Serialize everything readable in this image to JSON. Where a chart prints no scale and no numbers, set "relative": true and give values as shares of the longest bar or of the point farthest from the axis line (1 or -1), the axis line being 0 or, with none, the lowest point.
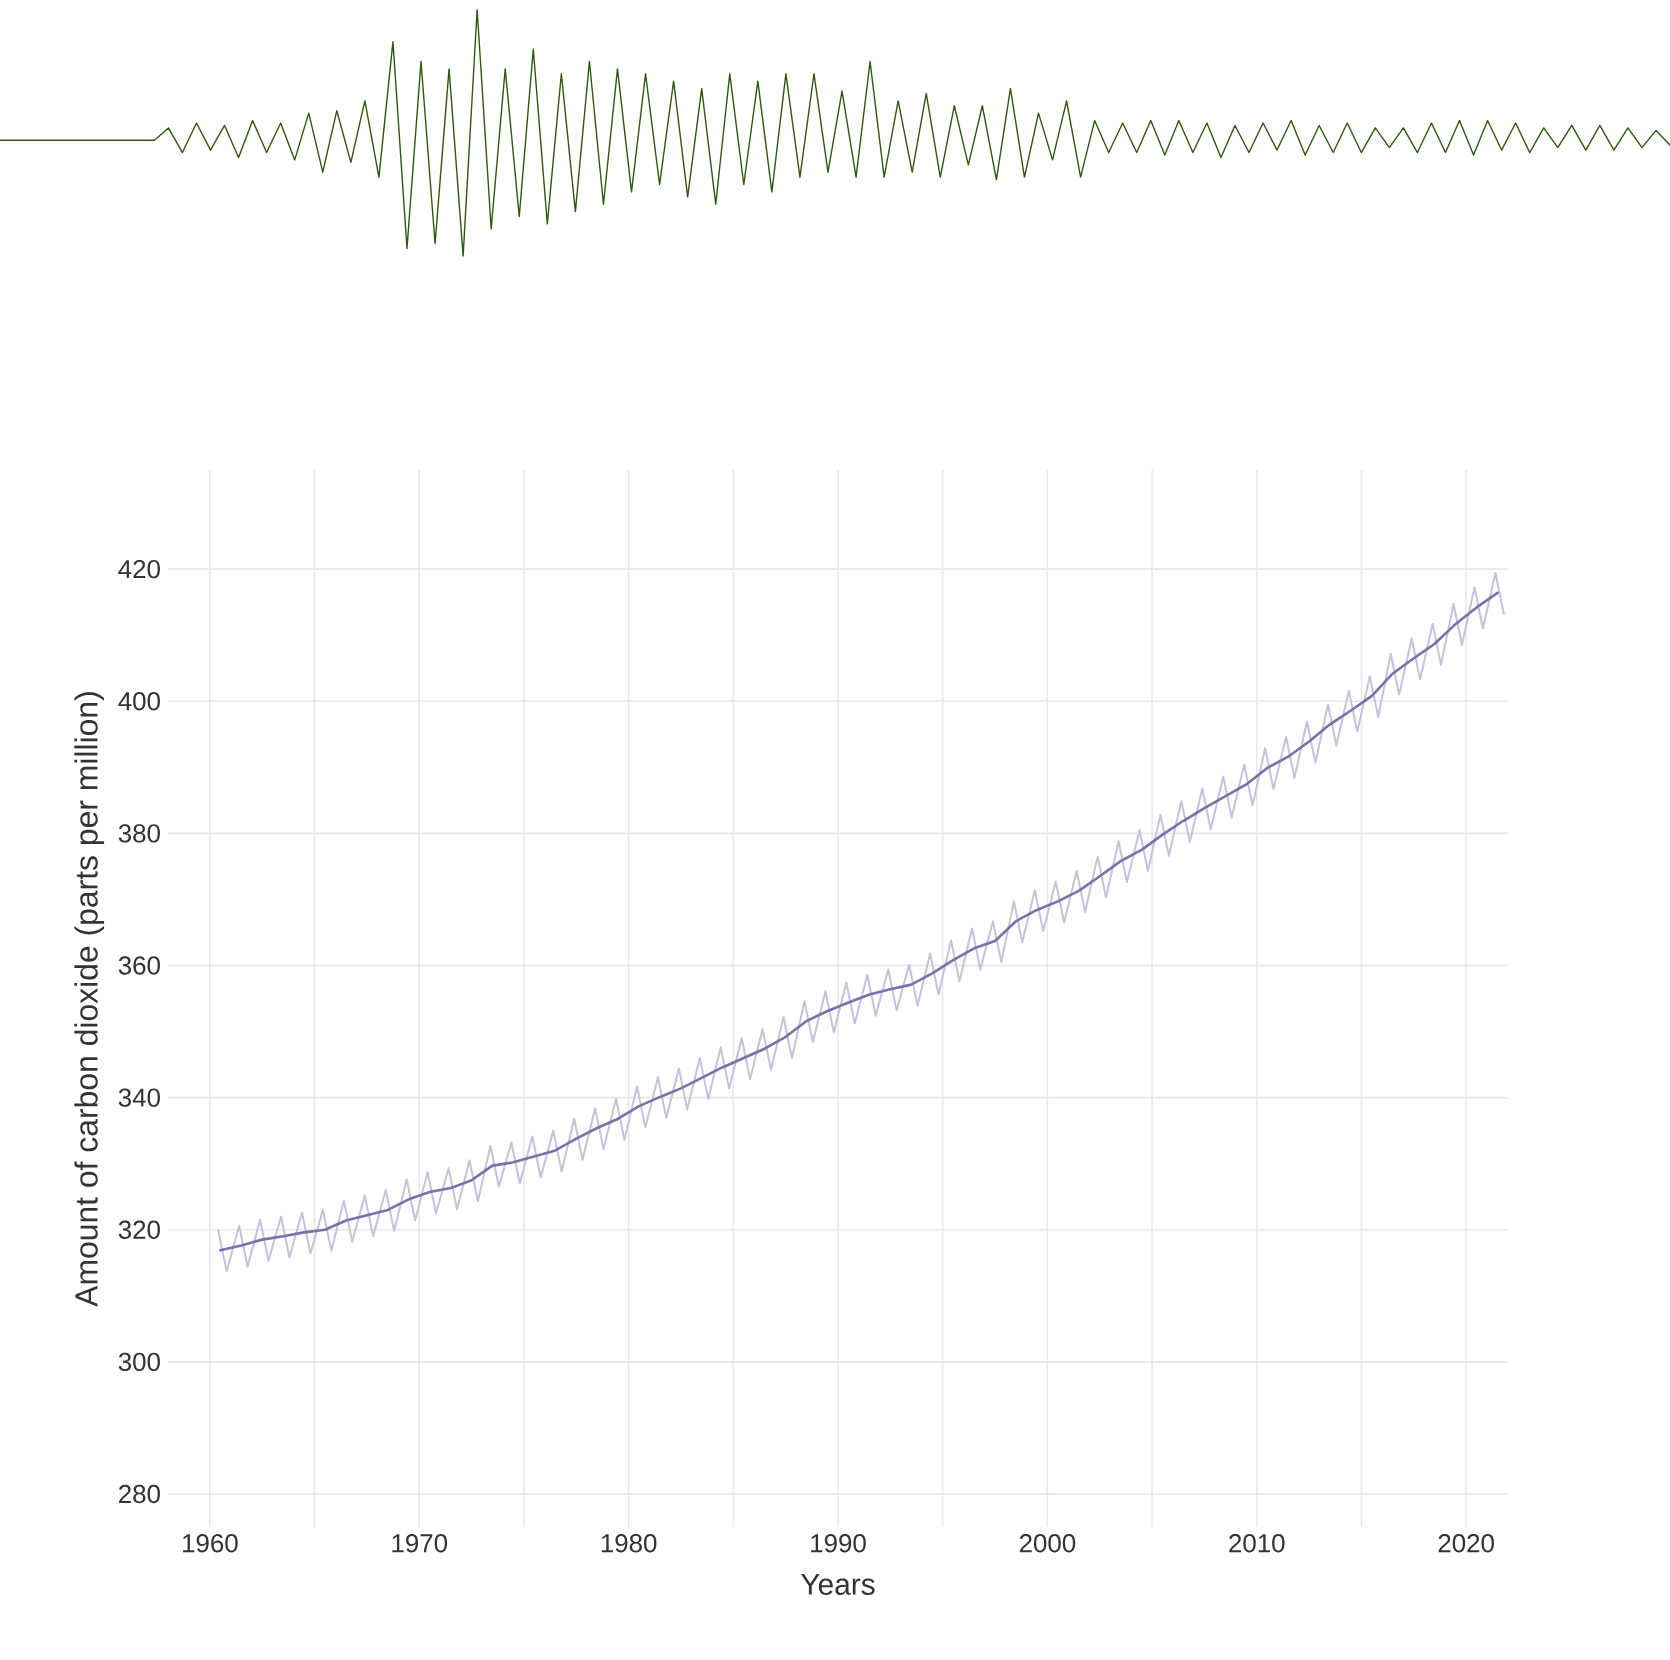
{
  "chart_data": [
    {
      "type": "line",
      "relative": true,
      "marker": "none",
      "categories": [
        null,
        null,
        null,
        null,
        null,
        null,
        null,
        null,
        null,
        null,
        null,
        null,
        null,
        null,
        null,
        null,
        null,
        null,
        null,
        null,
        null,
        null,
        null,
        null,
        null,
        null,
        null,
        null,
        null,
        null,
        null,
        null,
        null,
        null,
        null,
        null,
        null,
        null,
        null,
        null,
        null,
        null,
        null,
        null,
        null,
        null,
        null,
        null,
        null,
        null,
        null,
        null,
        null,
        null,
        null,
        null,
        null,
        null,
        null,
        null,
        null,
        null,
        null,
        null,
        null,
        null,
        null,
        null,
        null,
        null,
        null,
        null,
        null,
        null,
        null,
        null,
        null,
        null,
        null,
        null,
        null,
        null,
        null,
        null,
        null,
        null,
        null,
        null,
        null,
        null,
        null,
        null,
        null,
        null,
        null,
        null,
        null,
        null,
        null,
        null,
        null,
        null,
        null,
        null,
        null,
        null,
        null,
        null,
        null,
        null,
        null,
        null,
        null,
        null,
        null,
        null,
        null,
        null,
        null,
        null
      ],
      "series": [
        {
          "color": "#2d5a0e",
          "values": [
            0.47,
            0.47,
            0.47,
            0.47,
            0.47,
            0.47,
            0.47,
            0.47,
            0.47,
            0.47,
            0.47,
            0.47,
            0.52,
            0.42,
            0.54,
            0.43,
            0.53,
            0.4,
            0.55,
            0.42,
            0.54,
            0.39,
            0.58,
            0.34,
            0.59,
            0.38,
            0.63,
            0.32,
            0.87,
            0.03,
            0.79,
            0.05,
            0.76,
            0,
            1,
            0.11,
            0.76,
            0.16,
            0.84,
            0.13,
            0.74,
            0.18,
            0.79,
            0.21,
            0.76,
            0.26,
            0.74,
            0.29,
            0.71,
            0.24,
            0.68,
            0.21,
            0.74,
            0.29,
            0.71,
            0.26,
            0.74,
            0.32,
            0.74,
            0.34,
            0.67,
            0.32,
            0.79,
            0.32,
            0.63,
            0.34,
            0.66,
            0.32,
            0.61,
            0.37,
            0.61,
            0.31,
            0.68,
            0.32,
            0.58,
            0.39,
            0.63,
            0.32,
            0.55,
            0.42,
            0.54,
            0.42,
            0.55,
            0.41,
            0.55,
            0.42,
            0.54,
            0.4,
            0.53,
            0.42,
            0.54,
            0.43,
            0.55,
            0.41,
            0.53,
            0.42,
            0.54,
            0.42,
            0.52,
            0.44,
            0.52,
            0.42,
            0.54,
            0.42,
            0.55,
            0.41,
            0.55,
            0.43,
            0.54,
            0.42,
            0.52,
            0.44,
            0.53,
            0.43,
            0.53,
            0.43,
            0.52,
            0.44,
            0.51,
            0.45
          ]
        }
      ]
    },
    {
      "type": "line",
      "xlabel": "Years",
      "ylabel": "Amount of carbon dioxide (parts per million)",
      "grid": true,
      "marker": "none",
      "xlim": [
        1958,
        2022
      ],
      "ylim": [
        275,
        435
      ],
      "xticks": [
        1960,
        {
          "value": 1965,
          "label": null
        },
        1970,
        {
          "value": 1975,
          "label": null
        },
        1980,
        {
          "value": 1985,
          "label": null
        },
        1990,
        {
          "value": 1995,
          "label": null
        },
        2000,
        {
          "value": 2005,
          "label": null
        },
        2010,
        {
          "value": 2015,
          "label": null
        },
        2020
      ],
      "yticks": [
        280,
        300,
        320,
        340,
        360,
        380,
        400,
        420
      ],
      "series": [
        {
          "color": "#c3c3dd",
          "x": [
            1960.4,
            1960.8,
            1961.4,
            1961.8,
            1962.4,
            1962.8,
            1963.4,
            1963.8,
            1964.4,
            1964.8,
            1965.4,
            1965.8,
            1966.4,
            1966.8,
            1967.4,
            1967.8,
            1968.4,
            1968.8,
            1969.4,
            1969.8,
            1970.4,
            1970.8,
            1971.4,
            1971.8,
            1972.4,
            1972.8,
            1973.4,
            1973.8,
            1974.4,
            1974.8,
            1975.4,
            1975.8,
            1976.4,
            1976.8,
            1977.4,
            1977.8,
            1978.4,
            1978.8,
            1979.4,
            1979.8,
            1980.4,
            1980.8,
            1981.4,
            1981.8,
            1982.4,
            1982.8,
            1983.4,
            1983.8,
            1984.4,
            1984.8,
            1985.4,
            1985.8,
            1986.4,
            1986.8,
            1987.4,
            1987.8,
            1988.4,
            1988.8,
            1989.4,
            1989.8,
            1990.4,
            1990.8,
            1991.4,
            1991.8,
            1992.4,
            1992.8,
            1993.4,
            1993.8,
            1994.4,
            1994.8,
            1995.4,
            1995.8,
            1996.4,
            1996.8,
            1997.4,
            1997.8,
            1998.4,
            1998.8,
            1999.4,
            1999.8,
            2000.4,
            2000.8,
            2001.4,
            2001.8,
            2002.4,
            2002.8,
            2003.4,
            2003.8,
            2004.4,
            2004.8,
            2005.4,
            2005.8,
            2006.4,
            2006.8,
            2007.4,
            2007.8,
            2008.4,
            2008.8,
            2009.4,
            2009.8,
            2010.4,
            2010.8,
            2011.4,
            2011.8,
            2012.4,
            2012.8,
            2013.4,
            2013.8,
            2014.4,
            2014.8,
            2015.4,
            2015.8,
            2016.4,
            2016.8,
            2017.4,
            2017.8,
            2018.4,
            2018.8,
            2019.4,
            2019.8,
            2020.4,
            2020.8,
            2021.4,
            2021.8
          ],
          "values": [
            319.9,
            313.7,
            320.6,
            314.4,
            321.5,
            315.3,
            322.0,
            315.8,
            322.6,
            316.4,
            323.0,
            316.8,
            324.4,
            318.2,
            325.2,
            319.0,
            326.0,
            319.8,
            327.6,
            321.4,
            328.7,
            322.5,
            329.3,
            323.1,
            330.5,
            324.3,
            332.7,
            326.5,
            333.2,
            327.0,
            334.1,
            327.9,
            335.0,
            328.8,
            336.8,
            330.6,
            338.4,
            332.2,
            339.8,
            333.6,
            341.7,
            335.5,
            343.1,
            336.9,
            344.4,
            338.2,
            346.0,
            339.8,
            347.6,
            341.4,
            349.0,
            342.8,
            350.4,
            344.2,
            352.2,
            346.0,
            354.6,
            348.4,
            356.1,
            349.9,
            357.4,
            351.2,
            358.6,
            352.4,
            359.4,
            353.2,
            360.1,
            353.9,
            361.8,
            355.6,
            363.8,
            357.6,
            365.6,
            359.4,
            366.7,
            360.5,
            369.7,
            363.5,
            371.4,
            365.2,
            372.7,
            366.5,
            374.3,
            368.1,
            376.5,
            370.3,
            378.8,
            372.6,
            380.5,
            374.3,
            382.8,
            376.6,
            384.9,
            378.7,
            386.8,
            380.6,
            388.6,
            382.4,
            390.4,
            384.2,
            392.9,
            386.7,
            394.6,
            388.4,
            396.9,
            390.7,
            399.5,
            393.3,
            401.6,
            395.4,
            403.8,
            397.6,
            407.2,
            401.0,
            409.5,
            403.3,
            411.7,
            405.5,
            414.7,
            408.5,
            417.2,
            411.0,
            419.4,
            413.2
          ]
        },
        {
          "color": "#7474a6",
          "x": [
            1960.5,
            1961.5,
            1962.5,
            1963.5,
            1964.5,
            1965.5,
            1966.5,
            1967.5,
            1968.5,
            1969.5,
            1970.5,
            1971.5,
            1972.5,
            1973.5,
            1974.5,
            1975.5,
            1976.5,
            1977.5,
            1978.5,
            1979.5,
            1980.5,
            1981.5,
            1982.5,
            1983.5,
            1984.5,
            1985.5,
            1986.5,
            1987.5,
            1988.5,
            1989.5,
            1990.5,
            1991.5,
            1992.5,
            1993.5,
            1994.5,
            1995.5,
            1996.5,
            1997.5,
            1998.5,
            1999.5,
            2000.5,
            2001.5,
            2002.5,
            2003.5,
            2004.5,
            2005.5,
            2006.5,
            2007.5,
            2008.5,
            2009.5,
            2010.5,
            2011.5,
            2012.5,
            2013.5,
            2014.5,
            2015.5,
            2016.5,
            2017.5,
            2018.5,
            2019.5,
            2020.5,
            2021.5
          ],
          "values": [
            316.9,
            317.6,
            318.5,
            319.0,
            319.6,
            320.0,
            321.4,
            322.2,
            323.0,
            324.6,
            325.7,
            326.3,
            327.5,
            329.7,
            330.2,
            331.1,
            332.0,
            333.8,
            335.4,
            336.8,
            338.7,
            340.1,
            341.4,
            343.0,
            344.6,
            346.0,
            347.4,
            349.2,
            351.6,
            353.1,
            354.4,
            355.6,
            356.4,
            357.1,
            358.8,
            360.8,
            362.6,
            363.7,
            366.7,
            368.4,
            369.7,
            371.3,
            373.5,
            375.8,
            377.5,
            379.8,
            381.9,
            383.8,
            385.6,
            387.4,
            389.9,
            391.6,
            393.9,
            396.5,
            398.6,
            400.8,
            404.2,
            406.5,
            408.7,
            411.7,
            414.2,
            416.4
          ]
        }
      ]
    }
  ]
}
